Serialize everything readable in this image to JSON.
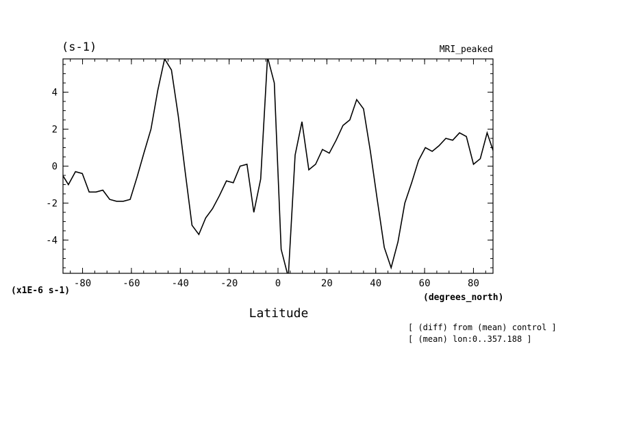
{
  "chart_data": {
    "type": "line",
    "unit_label": "(s-1)",
    "title_right": "MRI_peaked",
    "scale_label": "(x1E-6 s-1)",
    "x_unit": "(degrees_north)",
    "xlabel": "Latitude",
    "notes": [
      "[ (diff) from (mean) control ]",
      "[ (mean) lon:0..357.188 ]"
    ],
    "xlim": [
      -88,
      88
    ],
    "ylim": [
      -5.8,
      5.8
    ],
    "x_ticks": [
      -80,
      -60,
      -40,
      -20,
      0,
      20,
      40,
      60,
      80
    ],
    "x_tick_labels": [
      "-80",
      "-60",
      "-40",
      "-20",
      "0",
      "20",
      "40",
      "60",
      "80"
    ],
    "y_ticks": [
      -4,
      -2,
      0,
      2,
      4
    ],
    "y_tick_labels": [
      "-4",
      "-2",
      "0",
      "2",
      "4"
    ],
    "grid": false,
    "series": [
      {
        "x": [
          -88.6,
          -85.8,
          -82.9,
          -80.1,
          -77.3,
          -74.5,
          -71.7,
          -68.9,
          -66.1,
          -63.3,
          -60.5,
          -57.7,
          -54.9,
          -52.0,
          -49.2,
          -46.4,
          -43.6,
          -40.8,
          -38.0,
          -35.2,
          -32.4,
          -29.6,
          -26.8,
          -24.0,
          -21.1,
          -18.3,
          -15.5,
          -12.7,
          -9.9,
          -7.1,
          -4.3,
          -1.5,
          1.3,
          4.2,
          7.0,
          9.8,
          12.6,
          15.4,
          18.2,
          21.0,
          23.8,
          26.6,
          29.4,
          32.2,
          35.0,
          37.8,
          40.6,
          43.5,
          46.3,
          49.1,
          51.9,
          54.7,
          57.5,
          60.3,
          63.1,
          65.9,
          68.7,
          71.5,
          74.3,
          77.1,
          80.0,
          82.8,
          85.6,
          88.4
        ],
        "y": [
          -0.4,
          -1.0,
          -0.3,
          -0.4,
          -1.4,
          -1.4,
          -1.3,
          -1.8,
          -1.9,
          -1.9,
          -1.8,
          -0.6,
          0.7,
          2.0,
          4.1,
          5.8,
          5.2,
          2.7,
          -0.3,
          -3.2,
          -3.7,
          -2.8,
          -2.3,
          -1.6,
          -0.8,
          -0.9,
          0.0,
          0.1,
          -2.5,
          -0.7,
          5.9,
          4.5,
          -4.5,
          -6.0,
          0.6,
          2.4,
          -0.2,
          0.1,
          0.9,
          0.7,
          1.4,
          2.2,
          2.5,
          3.6,
          3.1,
          0.8,
          -1.8,
          -4.4,
          -5.5,
          -4.1,
          -2.0,
          -0.9,
          0.3,
          1.0,
          0.8,
          1.1,
          1.5,
          1.4,
          1.8,
          1.6,
          0.1,
          0.4,
          1.8,
          0.7
        ]
      }
    ]
  }
}
